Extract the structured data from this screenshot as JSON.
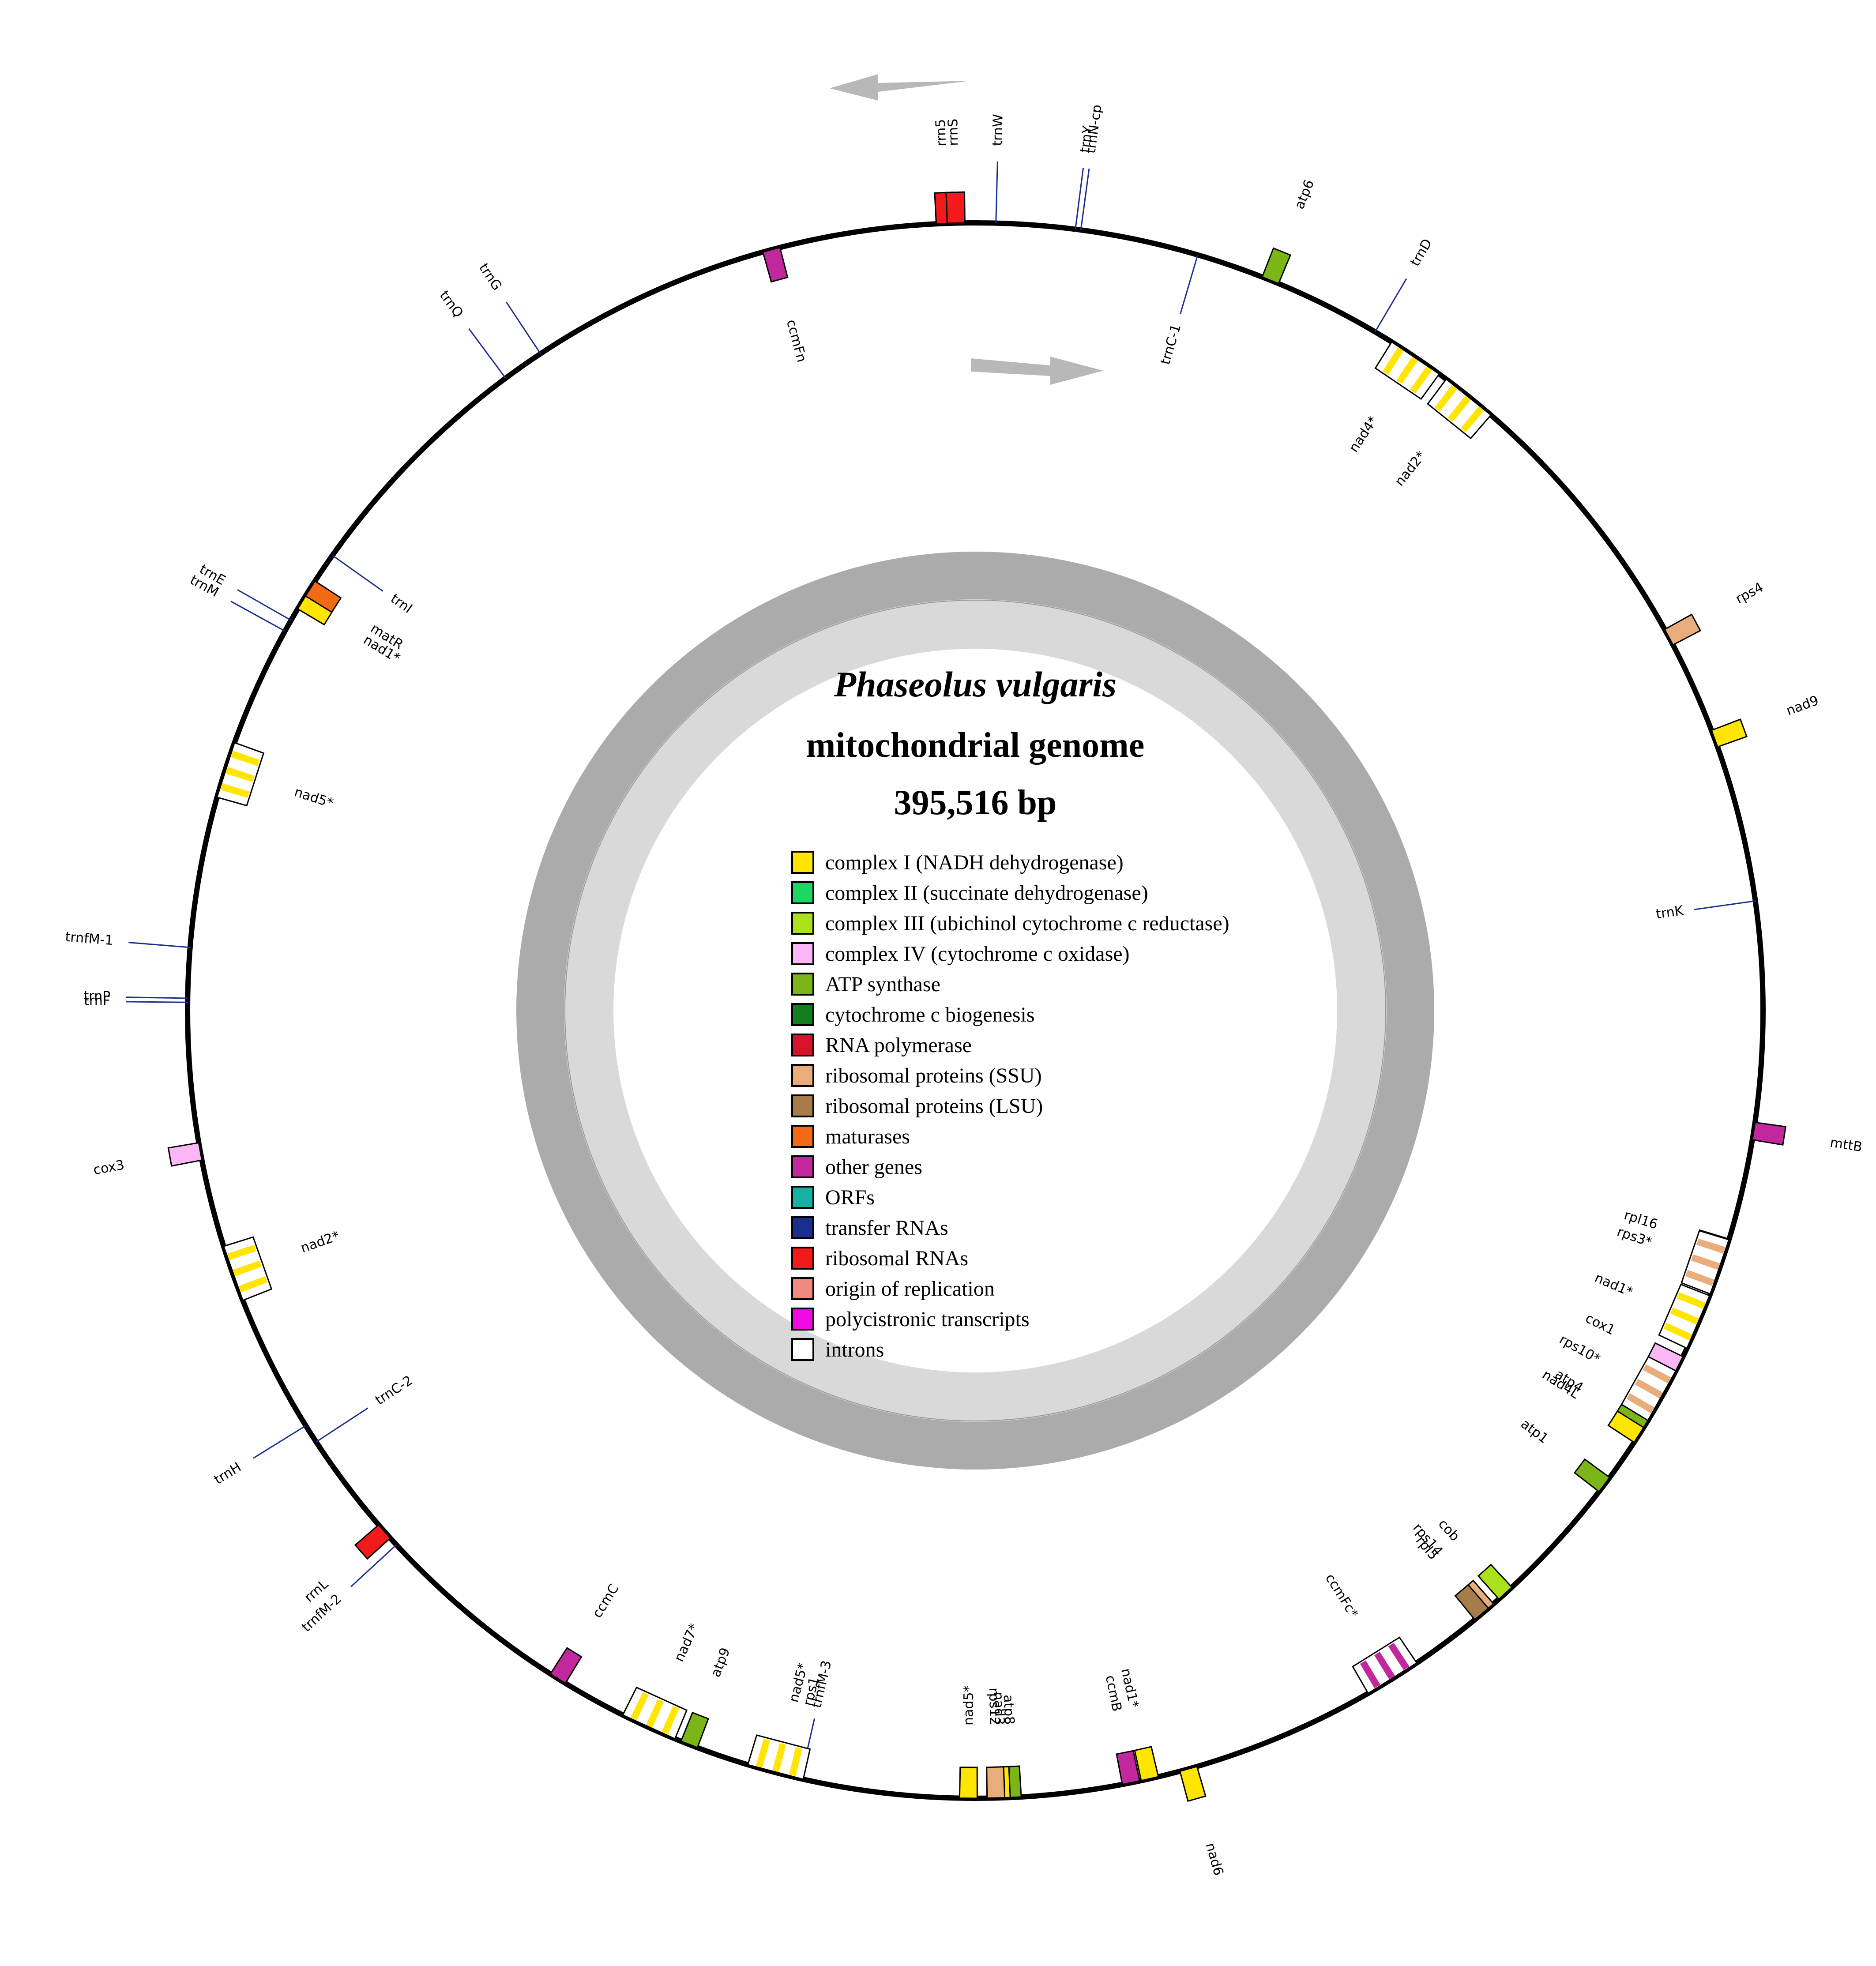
{
  "title": {
    "species": "Phaseolus vulgaris",
    "subtitle": "mitochondrial genome",
    "size": "395,516 bp"
  },
  "legend": [
    {
      "label": "complex I (NADH dehydrogenase)",
      "color": "#FFE500"
    },
    {
      "label": "complex II (succinate dehydrogenase)",
      "color": "#1ED760"
    },
    {
      "label": "complex III (ubichinol cytochrome c reductase)",
      "color": "#A9E21A"
    },
    {
      "label": "complex IV (cytochrome c oxidase)",
      "color": "#FDB6F5"
    },
    {
      "label": "ATP synthase",
      "color": "#7CB518"
    },
    {
      "label": "cytochrome c biogenesis",
      "color": "#127F1E"
    },
    {
      "label": "RNA polymerase",
      "color": "#D8122B"
    },
    {
      "label": "ribosomal proteins (SSU)",
      "color": "#E9AD7B"
    },
    {
      "label": "ribosomal proteins (LSU)",
      "color": "#A67C4A"
    },
    {
      "label": "maturases",
      "color": "#F26A13"
    },
    {
      "label": "other genes",
      "color": "#C2279E"
    },
    {
      "label": "ORFs",
      "color": "#17B1A4"
    },
    {
      "label": "transfer RNAs",
      "color": "#1A2E8E"
    },
    {
      "label": "ribosomal RNAs",
      "color": "#F21A1A"
    },
    {
      "label": "origin of replication",
      "color": "#F08A7E"
    },
    {
      "label": "polycistronic transcripts",
      "color": "#F20AE5"
    },
    {
      "label": "introns",
      "color": "#FFFFFF"
    }
  ],
  "genes": [
    {
      "name": "rrn5",
      "angle": -2.2,
      "type": "box",
      "color": "#F21A1A",
      "strand": "out"
    },
    {
      "name": "rrnS",
      "angle": -1.4,
      "type": "box",
      "color": "#F21A1A",
      "strand": "out"
    },
    {
      "name": "trnW",
      "angle": 1.5,
      "type": "trna",
      "color": "#1A2E8E",
      "strand": "out"
    },
    {
      "name": "trnY",
      "angle": 7.3,
      "type": "trna",
      "color": "#1A2E8E",
      "strand": "out"
    },
    {
      "name": "trnN-cp",
      "angle": 7.7,
      "type": "trna",
      "color": "#1A2E8E",
      "strand": "out"
    },
    {
      "name": "atp6",
      "angle": 22.0,
      "type": "box",
      "color": "#7CB518",
      "strand": "out"
    },
    {
      "name": "trnC-1",
      "angle": 16.4,
      "type": "trna",
      "color": "#1A2E8E",
      "strand": "in"
    },
    {
      "name": "trnD",
      "angle": 30.5,
      "type": "trna",
      "color": "#1A2E8E",
      "strand": "out"
    },
    {
      "name": "nad4*",
      "angle": 34.0,
      "type": "intron",
      "color": "#FFE500",
      "strand": "in"
    },
    {
      "name": "nad2*",
      "angle": 38.8,
      "type": "intron",
      "color": "#FFE500",
      "strand": "in"
    },
    {
      "name": "rps4",
      "angle": 61.7,
      "type": "box",
      "color": "#E9AD7B",
      "strand": "out"
    },
    {
      "name": "nad9",
      "angle": 69.8,
      "type": "box",
      "color": "#FFE500",
      "strand": "out"
    },
    {
      "name": "trnK",
      "angle": 82.0,
      "type": "trna",
      "color": "#1A2E8E",
      "strand": "in"
    },
    {
      "name": "mttB",
      "angle": 98.8,
      "type": "box",
      "color": "#C2279E",
      "strand": "out"
    },
    {
      "name": "rpl16",
      "angle": 107.5,
      "type": "box",
      "color": "#A67C4A",
      "strand": "in"
    },
    {
      "name": "rps3*",
      "angle": 109.0,
      "type": "intron",
      "color": "#E9AD7B",
      "strand": "in"
    },
    {
      "name": "nad1*",
      "angle": 113.3,
      "type": "intron",
      "color": "#FFE500",
      "strand": "in"
    },
    {
      "name": "cox1",
      "angle": 116.7,
      "type": "box",
      "color": "#FDB6F5",
      "strand": "in"
    },
    {
      "name": "rps10*",
      "angle": 119.3,
      "type": "intron",
      "color": "#E9AD7B",
      "strand": "in"
    },
    {
      "name": "atp4",
      "angle": 122.0,
      "type": "box",
      "color": "#7CB518",
      "strand": "in"
    },
    {
      "name": "nad4L",
      "angle": 122.6,
      "type": "box",
      "color": "#FFE500",
      "strand": "in"
    },
    {
      "name": "atp1",
      "angle": 127.0,
      "type": "box",
      "color": "#7CB518",
      "strand": "in"
    },
    {
      "name": "cob",
      "angle": 137.7,
      "type": "box",
      "color": "#A9E21A",
      "strand": "in"
    },
    {
      "name": "rps14",
      "angle": 139.5,
      "type": "box",
      "color": "#E9AD7B",
      "strand": "in"
    },
    {
      "name": "rpl5",
      "angle": 140.0,
      "type": "box",
      "color": "#A67C4A",
      "strand": "in"
    },
    {
      "name": "ccmFc*",
      "angle": 148.0,
      "type": "intron",
      "color": "#C2279E",
      "strand": "in"
    },
    {
      "name": "nad6",
      "angle": 164.3,
      "type": "box",
      "color": "#FFE500",
      "strand": "out"
    },
    {
      "name": "nad1*",
      "angle": 167.2,
      "type": "box",
      "color": "#FFE500",
      "strand": "in"
    },
    {
      "name": "ccmB",
      "angle": 168.6,
      "type": "box",
      "color": "#C2279E",
      "strand": "in"
    },
    {
      "name": "atp8",
      "angle": 177.3,
      "type": "box",
      "color": "#7CB518",
      "strand": "in"
    },
    {
      "name": "nad3",
      "angle": 178.1,
      "type": "box",
      "color": "#FFE500",
      "strand": "in"
    },
    {
      "name": "rps12",
      "angle": 178.5,
      "type": "box",
      "color": "#E9AD7B",
      "strand": "in"
    },
    {
      "name": "nad5*",
      "angle": 180.5,
      "type": "box",
      "color": "#FFE500",
      "strand": "in"
    },
    {
      "name": "trnfM-3",
      "angle": 192.8,
      "type": "trna",
      "color": "#1A2E8E",
      "strand": "in"
    },
    {
      "name": "rps1",
      "angle": 193.5,
      "type": "box",
      "color": "#E9AD7B",
      "strand": "in"
    },
    {
      "name": "nad5*",
      "angle": 194.7,
      "type": "intron",
      "color": "#FFE500",
      "strand": "in"
    },
    {
      "name": "atp9",
      "angle": 201.3,
      "type": "box",
      "color": "#7CB518",
      "strand": "in"
    },
    {
      "name": "nad7*",
      "angle": 204.5,
      "type": "intron",
      "color": "#FFE500",
      "strand": "in"
    },
    {
      "name": "ccmC",
      "angle": 212.0,
      "type": "box",
      "color": "#C2279E",
      "strand": "in"
    },
    {
      "name": "trnfM-2",
      "angle": 227.3,
      "type": "trna",
      "color": "#1A2E8E",
      "strand": "out"
    },
    {
      "name": "rrnL",
      "angle": 228.6,
      "type": "box",
      "color": "#F21A1A",
      "strand": "out"
    },
    {
      "name": "trnC-2",
      "angle": 236.8,
      "type": "trna",
      "color": "#1A2E8E",
      "strand": "in"
    },
    {
      "name": "trnH",
      "angle": 238.2,
      "type": "trna",
      "color": "#1A2E8E",
      "strand": "out"
    },
    {
      "name": "nad2*",
      "angle": 250.5,
      "type": "intron",
      "color": "#FFE500",
      "strand": "in"
    },
    {
      "name": "cox3",
      "angle": 259.7,
      "type": "box",
      "color": "#FDB6F5",
      "strand": "out"
    },
    {
      "name": "trnF",
      "angle": 270.6,
      "type": "trna",
      "color": "#1A2E8E",
      "strand": "out"
    },
    {
      "name": "trnP",
      "angle": 270.9,
      "type": "trna",
      "color": "#1A2E8E",
      "strand": "out"
    },
    {
      "name": "trnfM-1",
      "angle": 274.6,
      "type": "trna",
      "color": "#1A2E8E",
      "strand": "out"
    },
    {
      "name": "nad5*",
      "angle": 287.8,
      "type": "intron",
      "color": "#FFE500",
      "strand": "in"
    },
    {
      "name": "trnM",
      "angle": 298.8,
      "type": "trna",
      "color": "#1A2E8E",
      "strand": "out"
    },
    {
      "name": "trnE",
      "angle": 299.7,
      "type": "trna",
      "color": "#1A2E8E",
      "strand": "out"
    },
    {
      "name": "nad1*",
      "angle": 301.3,
      "type": "box",
      "color": "#FFE500",
      "strand": "in"
    },
    {
      "name": "matR",
      "angle": 302.4,
      "type": "box",
      "color": "#F26A13",
      "strand": "in"
    },
    {
      "name": "trnI",
      "angle": 305.3,
      "type": "trna",
      "color": "#1A2E8E",
      "strand": "in"
    },
    {
      "name": "trnQ",
      "angle": 323.4,
      "type": "trna",
      "color": "#1A2E8E",
      "strand": "out"
    },
    {
      "name": "trnG",
      "angle": 326.5,
      "type": "trna",
      "color": "#1A2E8E",
      "strand": "out"
    },
    {
      "name": "ccmFn",
      "angle": 345.0,
      "type": "box",
      "color": "#C2279E",
      "strand": "in"
    }
  ]
}
